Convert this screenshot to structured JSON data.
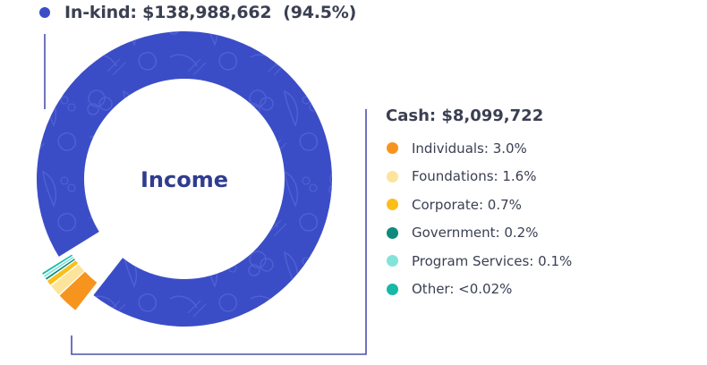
{
  "chart_data": {
    "type": "pie",
    "title": "Income",
    "total_label": "In-kind: $138,988,662 (94.5%)",
    "slices": [
      {
        "name": "In-kind",
        "value": 94.5,
        "color": "#3b4dc6"
      },
      {
        "name": "Individuals",
        "value": 3.0,
        "color": "#f7941d"
      },
      {
        "name": "Foundations",
        "value": 1.6,
        "color": "#fde49b"
      },
      {
        "name": "Corporate",
        "value": 0.7,
        "color": "#fbbf16"
      },
      {
        "name": "Government",
        "value": 0.2,
        "color": "#0e8a7c"
      },
      {
        "name": "Program Services",
        "value": 0.1,
        "color": "#82e3d9"
      },
      {
        "name": "Other",
        "value": 0.02,
        "color": "#17b9a6"
      }
    ]
  },
  "inkind": {
    "label": "In-kind: $138,988,662  (94.5%)",
    "color": "#3b4dc6"
  },
  "center_title": "Income",
  "cash": {
    "title": "Cash: $8,099,722",
    "items": [
      {
        "label": "Individuals: 3.0%",
        "color": "#f7941d"
      },
      {
        "label": "Foundations: 1.6%",
        "color": "#fde49b"
      },
      {
        "label": "Corporate: 0.7%",
        "color": "#fbbf16"
      },
      {
        "label": "Government: 0.2%",
        "color": "#0e8a7c"
      },
      {
        "label": "Program Services: 0.1%",
        "color": "#82e3d9"
      },
      {
        "label": "Other: <0.02%",
        "color": "#17b9a6"
      }
    ]
  },
  "colors": {
    "text": "#3a3f52",
    "title": "#2f3c8f",
    "leader_line": "#4a52a8",
    "ring_pattern": "#5f74e0"
  }
}
